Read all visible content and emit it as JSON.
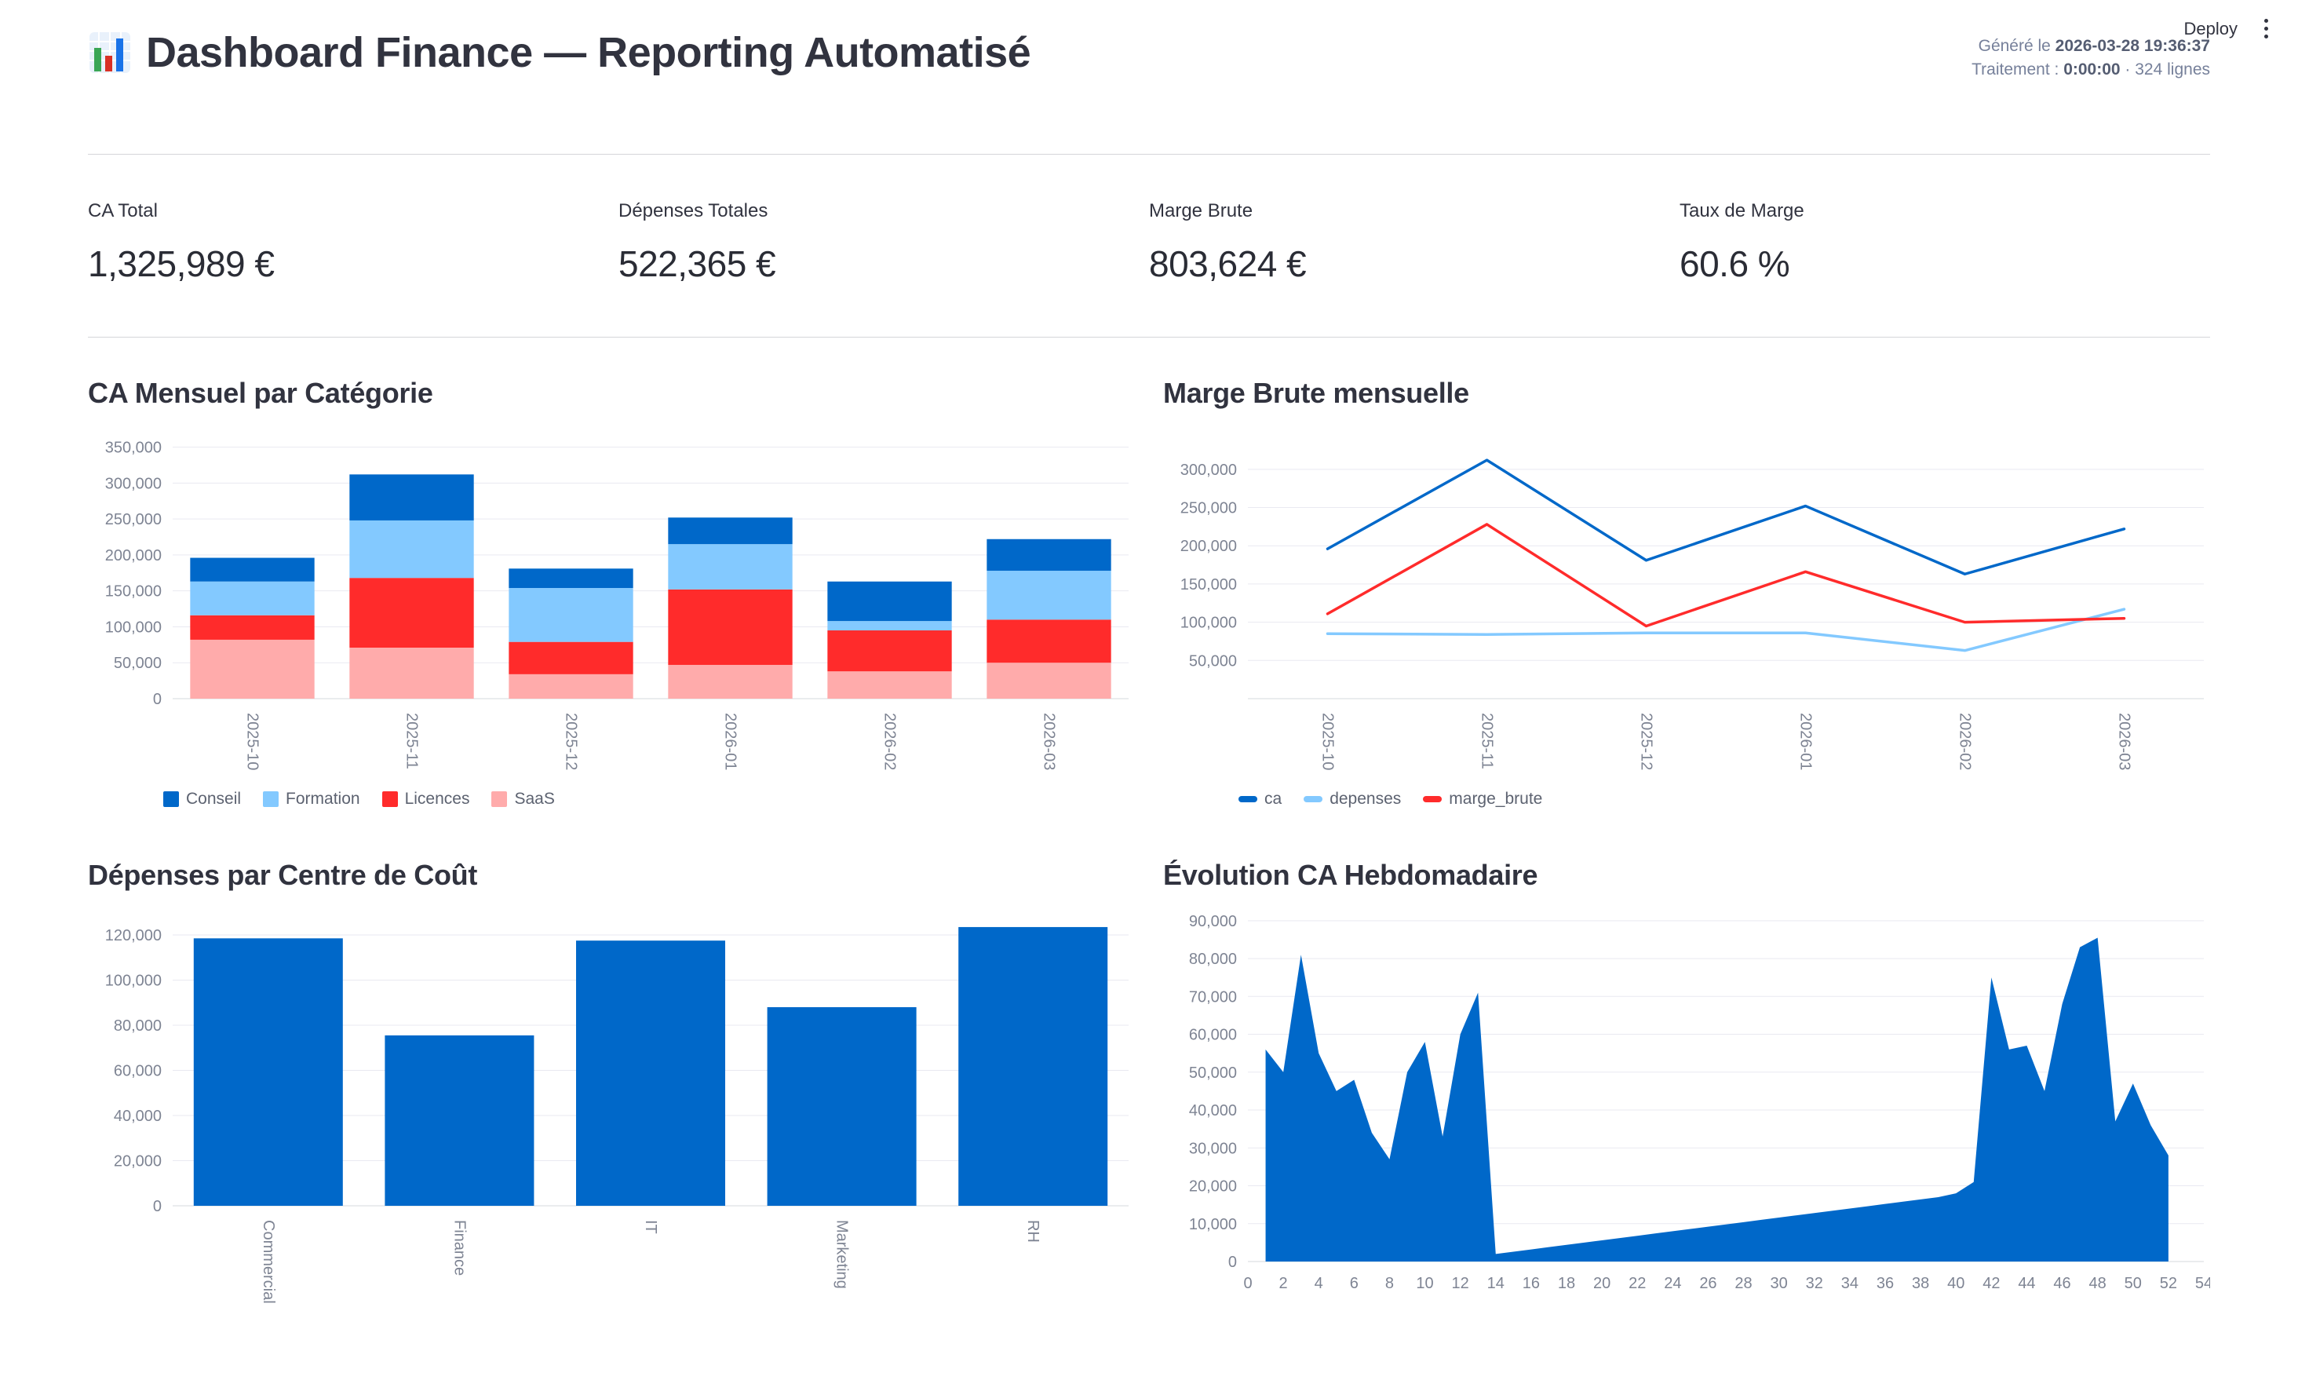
{
  "app": {
    "deploy_label": "Deploy",
    "title": "Dashboard Finance — Reporting Automatisé",
    "meta": {
      "generated_prefix": "Généré le ",
      "generated_value": "2026-03-28 19:36:37",
      "processing_prefix": "Traitement : ",
      "processing_value": "0:00:00",
      "rows_suffix": " · 324 lignes"
    }
  },
  "kpis": [
    {
      "label": "CA Total",
      "value": "1,325,989 €"
    },
    {
      "label": "Dépenses Totales",
      "value": "522,365 €"
    },
    {
      "label": "Marge Brute",
      "value": "803,624 €"
    },
    {
      "label": "Taux de Marge",
      "value": "60.6 %"
    }
  ],
  "colors": {
    "blue": "#0068c9",
    "light_blue": "#83c9ff",
    "red": "#ff2b2b",
    "pink": "#ffabab",
    "grid": "#e9e9f1",
    "axis_text": "#7e8493"
  },
  "chart_data": [
    {
      "type": "bar",
      "stacked": true,
      "title": "CA Mensuel par Catégorie",
      "categories": [
        "2025-10",
        "2025-11",
        "2025-12",
        "2026-01",
        "2026-02",
        "2026-03"
      ],
      "series": [
        {
          "name": "Conseil",
          "color": "#0068c9",
          "values": [
            33000,
            64000,
            27000,
            37000,
            55000,
            44000
          ]
        },
        {
          "name": "Formation",
          "color": "#83c9ff",
          "values": [
            47000,
            80000,
            75000,
            63000,
            13000,
            68000
          ]
        },
        {
          "name": "Licences",
          "color": "#ff2b2b",
          "values": [
            34000,
            97000,
            45000,
            105000,
            57000,
            60000
          ]
        },
        {
          "name": "SaaS",
          "color": "#ffabab",
          "values": [
            82000,
            71000,
            34000,
            47000,
            38000,
            50000
          ]
        }
      ],
      "stack_bottom_to_top": [
        "SaaS",
        "Licences",
        "Formation",
        "Conseil"
      ],
      "ylim": [
        0,
        367000
      ],
      "yticks": [
        0,
        50000,
        100000,
        150000,
        200000,
        250000,
        300000,
        350000
      ],
      "grid": true,
      "legend": "square",
      "legend_position": "bottom"
    },
    {
      "type": "line",
      "title": "Marge Brute mensuelle",
      "categories": [
        "2025-10",
        "2025-11",
        "2025-12",
        "2026-01",
        "2026-02",
        "2026-03"
      ],
      "series": [
        {
          "name": "ca",
          "color": "#0068c9",
          "values": [
            196000,
            312000,
            181000,
            252000,
            163000,
            222000
          ]
        },
        {
          "name": "depenses",
          "color": "#83c9ff",
          "values": [
            85000,
            84000,
            86000,
            86000,
            63000,
            117000
          ]
        },
        {
          "name": "marge_brute",
          "color": "#ff2b2b",
          "values": [
            111000,
            228000,
            95000,
            166000,
            100000,
            105000
          ]
        }
      ],
      "ylim": [
        0,
        345000
      ],
      "yticks": [
        50000,
        100000,
        150000,
        200000,
        250000,
        300000
      ],
      "grid": true,
      "legend": "dash",
      "legend_position": "bottom"
    },
    {
      "type": "bar",
      "stacked": false,
      "title": "Dépenses par Centre de Coût",
      "categories": [
        "Commercial",
        "Finance",
        "IT",
        "Marketing",
        "RH"
      ],
      "series": [
        {
          "name": "depenses",
          "color": "#0068c9",
          "values": [
            118500,
            75500,
            117500,
            88000,
            123500
          ]
        }
      ],
      "stack_bottom_to_top": [
        "depenses"
      ],
      "ylim": [
        0,
        128000
      ],
      "yticks": [
        0,
        20000,
        40000,
        60000,
        80000,
        100000,
        120000
      ],
      "grid": true,
      "legend": false
    },
    {
      "type": "area",
      "title": "Évolution CA Hebdomadaire",
      "color": "#0068c9",
      "x": [
        1,
        2,
        3,
        4,
        5,
        6,
        7,
        8,
        9,
        10,
        11,
        12,
        13,
        14,
        15,
        16,
        17,
        18,
        19,
        20,
        21,
        22,
        23,
        24,
        25,
        26,
        27,
        28,
        29,
        30,
        31,
        32,
        33,
        34,
        35,
        36,
        37,
        38,
        39,
        40,
        41,
        42,
        43,
        44,
        45,
        46,
        47,
        48,
        49,
        50,
        51,
        52
      ],
      "values": [
        56000,
        50000,
        81000,
        55000,
        45000,
        48000,
        34000,
        27000,
        50000,
        58000,
        33000,
        60000,
        71000,
        2000,
        2600,
        3200,
        3800,
        4400,
        5000,
        5600,
        6200,
        6800,
        7400,
        8000,
        8600,
        9200,
        9800,
        10400,
        11000,
        11600,
        12200,
        12800,
        13400,
        14000,
        14600,
        15200,
        15800,
        16400,
        17000,
        18000,
        21000,
        75000,
        56000,
        57000,
        45000,
        68000,
        83000,
        85500,
        37000,
        47000,
        36000,
        28000
      ],
      "xlim": [
        0,
        54
      ],
      "xticks": [
        0,
        2,
        4,
        6,
        8,
        10,
        12,
        14,
        16,
        18,
        20,
        22,
        24,
        26,
        28,
        30,
        32,
        34,
        36,
        38,
        40,
        42,
        44,
        46,
        48,
        50,
        52,
        54
      ],
      "ylim": [
        0,
        91000
      ],
      "yticks": [
        0,
        10000,
        20000,
        30000,
        40000,
        50000,
        60000,
        70000,
        80000,
        90000
      ],
      "grid": true,
      "legend": false
    }
  ]
}
